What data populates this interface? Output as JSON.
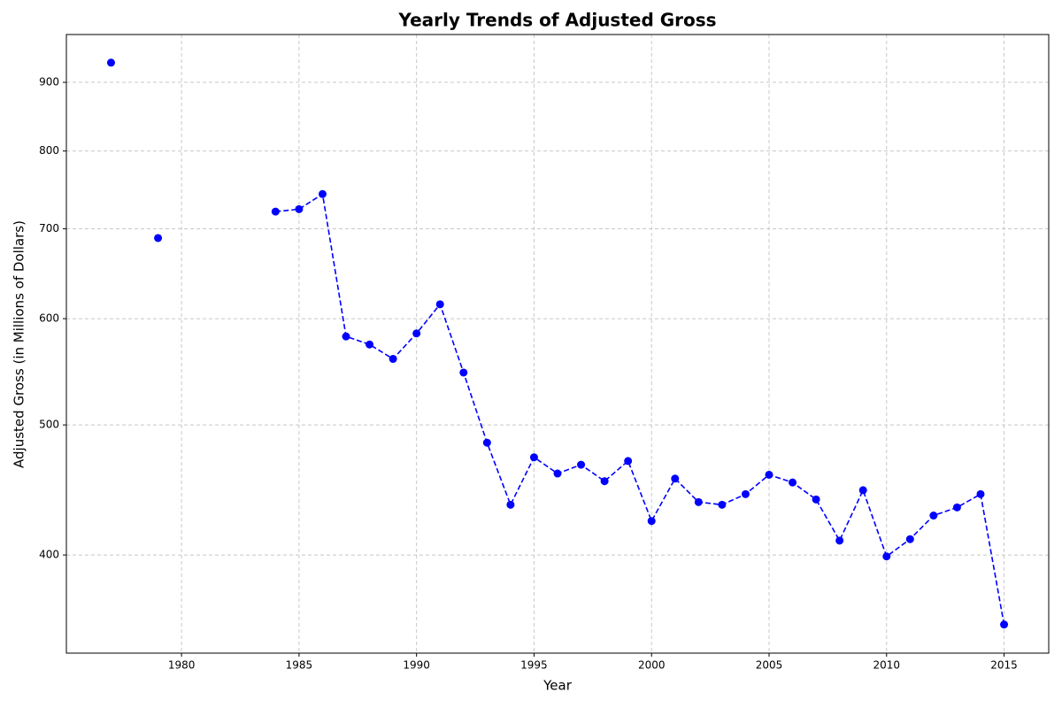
{
  "chart_data": {
    "type": "line",
    "title": "Yearly Trends of Adjusted Gross",
    "x_label": "Year",
    "y_label": "Adjusted Gross (in Millions of Dollars)",
    "x": [
      1977,
      1978,
      1979,
      1980,
      1981,
      1982,
      1983,
      1984,
      1985,
      1986,
      1987,
      1988,
      1989,
      1990,
      1991,
      1992,
      1993,
      1994,
      1995,
      1996,
      1997,
      1998,
      1999,
      2000,
      2001,
      2002,
      2003,
      2004,
      2005,
      2006,
      2007,
      2008,
      2009,
      2010,
      2011,
      2012,
      2013,
      2014,
      2015
    ],
    "series": [
      {
        "name": "Adjusted Gross",
        "color": "#0000ff",
        "values": [
          931,
          null,
          689,
          null,
          null,
          null,
          null,
          721,
          724,
          743,
          582,
          574,
          560,
          585,
          615,
          547,
          485,
          436,
          473,
          460,
          467,
          454,
          470,
          424,
          456,
          438,
          436,
          444,
          459,
          453,
          440,
          410,
          447,
          399,
          411,
          428,
          434,
          444,
          355
        ]
      }
    ],
    "xlim": [
      1975.1,
      2016.9
    ],
    "xticks": [
      1980,
      1985,
      1990,
      1995,
      2000,
      2005,
      2010,
      2015
    ],
    "ylim": [
      338,
      977
    ],
    "yticks": [
      400,
      500,
      600,
      700,
      800,
      900
    ],
    "y_scale": "log",
    "grid": true
  }
}
